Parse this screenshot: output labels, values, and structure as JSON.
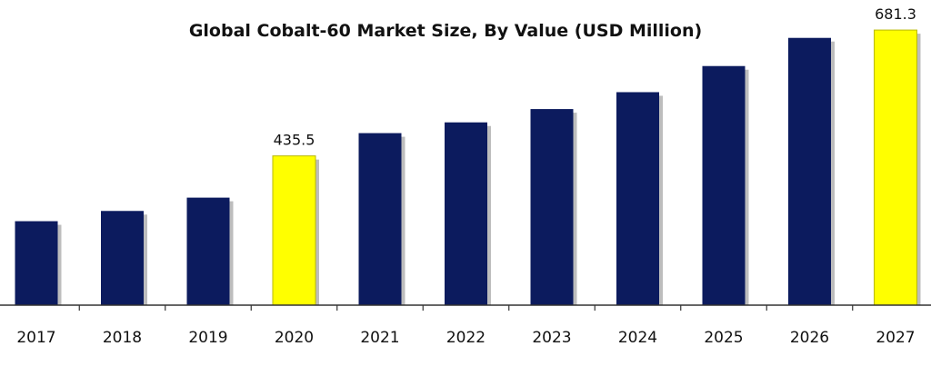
{
  "chart_data": {
    "type": "bar",
    "title": "Global Cobalt-60 Market Size, By Value (USD Million)",
    "xlabel": "",
    "ylabel": "",
    "categories": [
      "2017",
      "2018",
      "2019",
      "2020",
      "2021",
      "2022",
      "2023",
      "2024",
      "2025",
      "2026",
      "2027"
    ],
    "values": [
      308,
      328,
      354,
      435.5,
      480,
      501,
      527,
      560,
      611,
      666,
      681.3
    ],
    "data_labels": [
      {
        "category": "2020",
        "text": "435.5"
      },
      {
        "category": "2027",
        "text": "681.3"
      }
    ],
    "highlight_categories": [
      "2020",
      "2027"
    ],
    "ylim": [
      144,
      740
    ],
    "grid": false,
    "legend": "none",
    "colors": {
      "bar": "#0c1b5e",
      "highlight": "#ffff00",
      "highlight_border": "#b8b800",
      "axis": "#333333",
      "shadow": "#bdbdbd"
    }
  }
}
